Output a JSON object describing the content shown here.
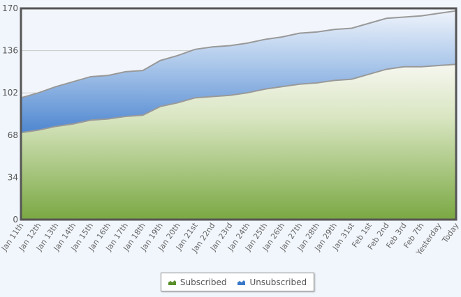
{
  "chart_data": {
    "type": "area",
    "stacked": true,
    "title": "",
    "xlabel": "",
    "ylabel": "",
    "ylim": [
      0,
      170
    ],
    "yticks": [
      0,
      34,
      68,
      102,
      136,
      170
    ],
    "grid": true,
    "legend_position": "bottom",
    "categories": [
      "Jan 11th",
      "Jan 12th",
      "Jan 13th",
      "Jan 14th",
      "Jan 15th",
      "Jan 16th",
      "Jan 17th",
      "Jan 18th",
      "Jan 19th",
      "Jan 20th",
      "Jan 21st",
      "Jan 22nd",
      "Jan 23rd",
      "Jan 24th",
      "Jan 25th",
      "Jan 26th",
      "Jan 27th",
      "Jan 28th",
      "Jan 29th",
      "Jan 31st",
      "Feb 1st",
      "Feb 2nd",
      "Feb 3rd",
      "Feb 7th",
      "Yesterday",
      "Today"
    ],
    "series": [
      {
        "name": "Subscribed",
        "color": "#7aa843",
        "values": [
          70,
          72,
          75,
          77,
          80,
          81,
          83,
          84,
          91,
          94,
          98,
          99,
          100,
          102,
          105,
          107,
          109,
          110,
          112,
          113,
          117,
          121,
          123,
          123,
          124,
          125
        ]
      },
      {
        "name": "Unsubscribed",
        "color": "#5b8fd4",
        "values": [
          28,
          30,
          32,
          34,
          35,
          35,
          36,
          36,
          37,
          38,
          39,
          40,
          40,
          40,
          40,
          40,
          41,
          41,
          41,
          41,
          41,
          41,
          40,
          41,
          42,
          43
        ]
      }
    ]
  },
  "legend": {
    "items": [
      {
        "label": "Subscribed",
        "color": "#5a8f2a"
      },
      {
        "label": "Unsubscribed",
        "color": "#3a78c9"
      }
    ]
  }
}
